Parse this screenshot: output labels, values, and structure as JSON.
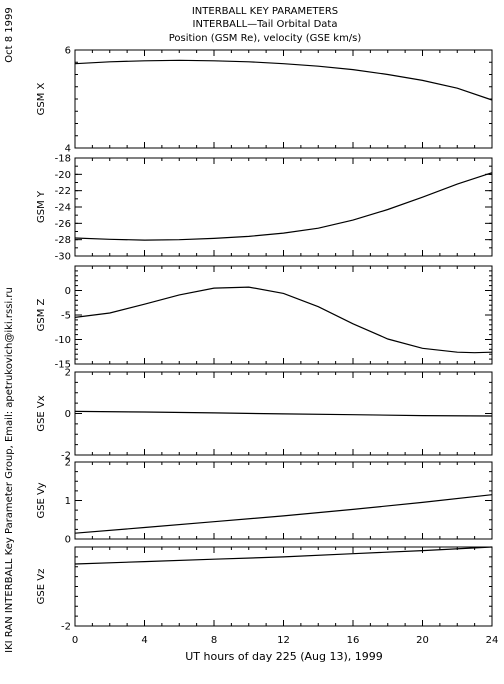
{
  "header": {
    "line1": "INTERBALL KEY PARAMETERS",
    "line2": "INTERBALL—Tail Orbital Data",
    "line3": "Position (GSM Re), velocity (GSE km/s)"
  },
  "date_label": "Oct  8 1999",
  "credit_label": "IKI RAN INTERBALL Key Parameter Group, Email: apetrukovich@iki.rssi.ru",
  "chart_data": {
    "type": "line",
    "xlabel": "UT hours of day 225 (Aug 13), 1999",
    "xlim": [
      0,
      24
    ],
    "xticks": [
      0,
      4,
      8,
      12,
      16,
      20,
      24
    ],
    "grid": false,
    "panels": [
      {
        "ylabel": "GSM X",
        "ylim": [
          4,
          6
        ],
        "yticks": [
          4,
          6
        ],
        "x": [
          0,
          2,
          4,
          6,
          8,
          10,
          12,
          14,
          16,
          18,
          20,
          22,
          24
        ],
        "y": [
          5.72,
          5.76,
          5.78,
          5.79,
          5.78,
          5.76,
          5.72,
          5.67,
          5.6,
          5.5,
          5.38,
          5.22,
          4.98
        ]
      },
      {
        "ylabel": "GSM Y",
        "ylim": [
          -30,
          -18
        ],
        "yticks": [
          -30,
          -28,
          -26,
          -24,
          -22,
          -20,
          -18
        ],
        "x": [
          0,
          2,
          4,
          6,
          8,
          10,
          12,
          14,
          16,
          18,
          20,
          22,
          24
        ],
        "y": [
          -27.8,
          -27.95,
          -28.05,
          -28.0,
          -27.85,
          -27.6,
          -27.2,
          -26.6,
          -25.6,
          -24.3,
          -22.8,
          -21.2,
          -19.8
        ]
      },
      {
        "ylabel": "GSM Z",
        "ylim": [
          -15,
          5
        ],
        "yticks": [
          -15,
          -10,
          -5,
          0
        ],
        "x": [
          0,
          2,
          4,
          6,
          8,
          10,
          12,
          14,
          16,
          18,
          20,
          22,
          23,
          24
        ],
        "y": [
          -5.5,
          -4.6,
          -2.8,
          -0.9,
          0.5,
          0.7,
          -0.6,
          -3.3,
          -6.8,
          -9.9,
          -11.8,
          -12.6,
          -12.7,
          -12.6
        ]
      },
      {
        "ylabel": "GSE Vx",
        "ylim": [
          -2,
          2
        ],
        "yticks": [
          -2,
          0,
          2
        ],
        "x": [
          0,
          4,
          8,
          12,
          16,
          20,
          24
        ],
        "y": [
          0.1,
          0.07,
          0.03,
          -0.02,
          -0.06,
          -0.1,
          -0.12
        ]
      },
      {
        "ylabel": "GSE Vy",
        "ylim": [
          0,
          2
        ],
        "yticks": [
          0,
          1,
          2
        ],
        "x": [
          0,
          4,
          8,
          12,
          16,
          20,
          24
        ],
        "y": [
          0.15,
          0.3,
          0.45,
          0.6,
          0.77,
          0.95,
          1.15
        ]
      },
      {
        "ylabel": "GSE Vz",
        "ylim": [
          -2,
          0
        ],
        "yticks": [
          -2
        ],
        "x": [
          0,
          4,
          8,
          12,
          16,
          20,
          24
        ],
        "y": [
          -0.43,
          -0.37,
          -0.31,
          -0.25,
          -0.17,
          -0.09,
          0.0
        ]
      }
    ]
  }
}
